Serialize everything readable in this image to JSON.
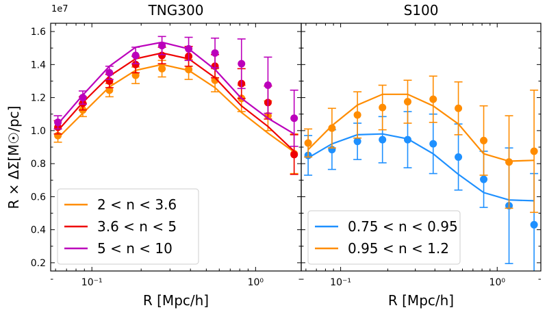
{
  "chart_data": [
    {
      "type": "line",
      "title": "TNG300",
      "xlabel": "R [Mpc/h]",
      "ylabel": "R × ΔΣ[M☉/pc]",
      "y_exponent_label": "1e7",
      "x_scale": "log",
      "xlim": [
        0.056,
        1.9
      ],
      "ylim": [
        0.15,
        1.65
      ],
      "x_tick_labels": [
        "10⁻¹",
        "10⁰"
      ],
      "y_tick_labels": [
        "0.2",
        "0.4",
        "0.6",
        "0.8",
        "1.0",
        "1.2",
        "1.4",
        "1.6"
      ],
      "legend_position": "lower-left",
      "grid": false,
      "series": [
        {
          "name": "2 < n < 3.6",
          "color": "#ff8c00",
          "line_x": [
            0.062,
            0.088,
            0.128,
            0.185,
            0.268,
            0.39,
            0.565,
            0.82,
            1.19,
            1.72
          ],
          "line_y": [
            0.955,
            1.105,
            1.265,
            1.365,
            1.4,
            1.365,
            1.26,
            1.11,
            0.985,
            0.87
          ],
          "points_x": [
            0.062,
            0.088,
            0.128,
            0.185,
            0.268,
            0.39,
            0.565,
            0.82,
            1.19,
            1.72
          ],
          "points_y": [
            0.97,
            1.125,
            1.245,
            1.335,
            1.375,
            1.37,
            1.305,
            1.195,
            1.09,
            0.86
          ],
          "err": [
            0.04,
            0.04,
            0.04,
            0.05,
            0.05,
            0.06,
            0.07,
            0.08,
            0.09,
            0.12
          ]
        },
        {
          "name": "3.6 < n < 5",
          "color": "#ee0000",
          "line_x": [
            0.062,
            0.088,
            0.128,
            0.185,
            0.268,
            0.39,
            0.565,
            0.82,
            1.19,
            1.72
          ],
          "line_y": [
            1.0,
            1.17,
            1.33,
            1.435,
            1.47,
            1.435,
            1.32,
            1.15,
            1.025,
            0.875
          ],
          "points_x": [
            0.062,
            0.088,
            0.128,
            0.185,
            0.268,
            0.39,
            0.565,
            0.82,
            1.19,
            1.72
          ],
          "points_y": [
            1.02,
            1.165,
            1.3,
            1.4,
            1.455,
            1.45,
            1.39,
            1.285,
            1.17,
            0.855
          ],
          "err": [
            0.04,
            0.04,
            0.04,
            0.05,
            0.05,
            0.06,
            0.07,
            0.09,
            0.1,
            0.12
          ]
        },
        {
          "name": "5 < n < 10",
          "color": "#bb00bb",
          "line_x": [
            0.062,
            0.088,
            0.128,
            0.185,
            0.268,
            0.39,
            0.565,
            0.82,
            1.19,
            1.72
          ],
          "line_y": [
            1.04,
            1.215,
            1.39,
            1.505,
            1.535,
            1.495,
            1.37,
            1.195,
            1.075,
            0.98
          ],
          "points_x": [
            0.062,
            0.088,
            0.128,
            0.185,
            0.268,
            0.39,
            0.565,
            0.82,
            1.19,
            1.72
          ],
          "points_y": [
            1.05,
            1.2,
            1.35,
            1.455,
            1.515,
            1.495,
            1.47,
            1.405,
            1.275,
            1.075
          ],
          "err": [
            0.04,
            0.04,
            0.04,
            0.05,
            0.055,
            0.07,
            0.09,
            0.15,
            0.17,
            0.17
          ]
        }
      ]
    },
    {
      "type": "line",
      "title": "S100",
      "xlabel": "R [Mpc/h]",
      "x_scale": "log",
      "xlim": [
        0.056,
        1.9
      ],
      "ylim": [
        0.15,
        1.65
      ],
      "x_tick_labels": [
        "10⁻¹",
        "10⁰"
      ],
      "legend_position": "lower-left",
      "grid": false,
      "series": [
        {
          "name": "0.75 < n < 0.95",
          "color": "#1e90ff",
          "line_x": [
            0.062,
            0.088,
            0.128,
            0.185,
            0.268,
            0.39,
            0.565,
            0.82,
            1.19,
            1.72
          ],
          "line_y": [
            0.835,
            0.92,
            0.975,
            0.98,
            0.95,
            0.86,
            0.735,
            0.625,
            0.58,
            0.575
          ],
          "points_x": [
            0.062,
            0.088,
            0.128,
            0.185,
            0.268,
            0.39,
            0.565,
            0.82,
            1.19,
            1.72
          ],
          "points_y": [
            0.85,
            0.885,
            0.935,
            0.945,
            0.945,
            0.92,
            0.84,
            0.705,
            0.545,
            0.43
          ],
          "err": [
            0.12,
            0.12,
            0.11,
            0.14,
            0.17,
            0.18,
            0.2,
            0.17,
            0.35,
            0.31
          ]
        },
        {
          "name": "0.95 < n < 1.2",
          "color": "#ff8c00",
          "line_x": [
            0.062,
            0.088,
            0.128,
            0.185,
            0.268,
            0.39,
            0.565,
            0.82,
            1.19,
            1.72
          ],
          "line_y": [
            0.885,
            1.03,
            1.155,
            1.22,
            1.22,
            1.15,
            1.04,
            0.86,
            0.815,
            0.82
          ],
          "points_x": [
            0.062,
            0.088,
            0.128,
            0.185,
            0.268,
            0.39,
            0.565,
            0.82,
            1.19,
            1.72
          ],
          "points_y": [
            0.925,
            1.015,
            1.095,
            1.14,
            1.175,
            1.19,
            1.135,
            0.94,
            0.81,
            0.875
          ],
          "err": [
            0.085,
            0.12,
            0.14,
            0.135,
            0.13,
            0.14,
            0.16,
            0.21,
            0.28,
            0.37
          ]
        }
      ]
    }
  ]
}
